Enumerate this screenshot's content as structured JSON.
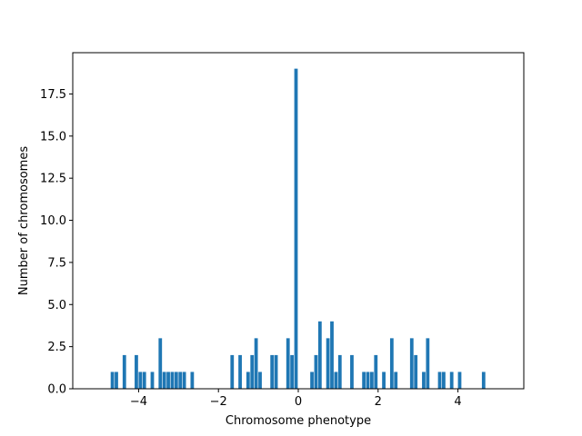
{
  "chart_data": {
    "type": "bar",
    "xlabel": "Chromosome phenotype",
    "ylabel": "Number of chromosomes",
    "xlim": [
      -5.65,
      5.65
    ],
    "ylim": [
      0,
      19.95
    ],
    "xticks": [
      -4,
      -2,
      0,
      2,
      4
    ],
    "xtick_labels": [
      "−4",
      "−2",
      "0",
      "2",
      "4"
    ],
    "yticks": [
      0.0,
      2.5,
      5.0,
      7.5,
      10.0,
      12.5,
      15.0,
      17.5
    ],
    "ytick_labels": [
      "0.0",
      "2.5",
      "5.0",
      "7.5",
      "10.0",
      "12.5",
      "15.0",
      "17.5"
    ],
    "bar_width": 0.1,
    "bar_color": "#1f77b4",
    "grid": false,
    "x": [
      -4.65,
      -4.55,
      -4.35,
      -4.05,
      -3.95,
      -3.85,
      -3.65,
      -3.45,
      -3.35,
      -3.25,
      -3.15,
      -3.05,
      -2.95,
      -2.85,
      -2.65,
      -1.65,
      -1.45,
      -1.25,
      -1.15,
      -1.05,
      -0.95,
      -0.65,
      -0.55,
      -0.25,
      -0.15,
      -0.05,
      0.35,
      0.45,
      0.55,
      0.75,
      0.85,
      0.95,
      1.05,
      1.35,
      1.65,
      1.75,
      1.85,
      1.95,
      2.15,
      2.35,
      2.45,
      2.85,
      2.95,
      3.15,
      3.25,
      3.55,
      3.65,
      3.85,
      4.05,
      4.65
    ],
    "values": [
      1,
      1,
      2,
      2,
      1,
      1,
      1,
      3,
      1,
      1,
      1,
      1,
      1,
      1,
      1,
      2,
      2,
      1,
      2,
      3,
      1,
      2,
      2,
      3,
      2,
      19,
      1,
      2,
      4,
      3,
      4,
      1,
      2,
      2,
      1,
      1,
      1,
      2,
      1,
      3,
      1,
      3,
      2,
      1,
      3,
      1,
      1,
      1,
      1,
      1
    ]
  }
}
